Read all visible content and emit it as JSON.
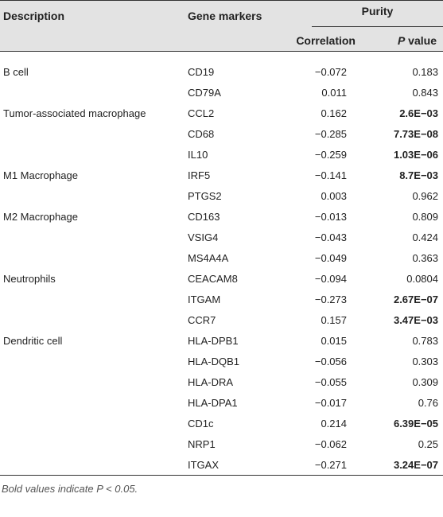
{
  "header": {
    "description": "Description",
    "gene_markers": "Gene markers",
    "purity": "Purity",
    "correlation": "Correlation",
    "p_letter": "P",
    "p_value_suffix": " value"
  },
  "rows": [
    {
      "description": "B cell",
      "gene": "CD19",
      "correlation": "−0.072",
      "p_value": "0.183",
      "bold": false
    },
    {
      "description": "",
      "gene": "CD79A",
      "correlation": "0.011",
      "p_value": "0.843",
      "bold": false
    },
    {
      "description": "Tumor-associated macrophage",
      "gene": "CCL2",
      "correlation": "0.162",
      "p_value": "2.6E−03",
      "bold": true
    },
    {
      "description": "",
      "gene": "CD68",
      "correlation": "−0.285",
      "p_value": "7.73E−08",
      "bold": true
    },
    {
      "description": "",
      "gene": "IL10",
      "correlation": "−0.259",
      "p_value": "1.03E−06",
      "bold": true
    },
    {
      "description": "M1 Macrophage",
      "gene": "IRF5",
      "correlation": "−0.141",
      "p_value": "8.7E−03",
      "bold": true
    },
    {
      "description": "",
      "gene": "PTGS2",
      "correlation": "0.003",
      "p_value": "0.962",
      "bold": false
    },
    {
      "description": "M2 Macrophage",
      "gene": "CD163",
      "correlation": "−0.013",
      "p_value": "0.809",
      "bold": false
    },
    {
      "description": "",
      "gene": "VSIG4",
      "correlation": "−0.043",
      "p_value": "0.424",
      "bold": false
    },
    {
      "description": "",
      "gene": "MS4A4A",
      "correlation": "−0.049",
      "p_value": "0.363",
      "bold": false
    },
    {
      "description": "Neutrophils",
      "gene": "CEACAM8",
      "correlation": "−0.094",
      "p_value": "0.0804",
      "bold": false
    },
    {
      "description": "",
      "gene": "ITGAM",
      "correlation": "−0.273",
      "p_value": "2.67E−07",
      "bold": true
    },
    {
      "description": "",
      "gene": "CCR7",
      "correlation": "0.157",
      "p_value": "3.47E−03",
      "bold": true
    },
    {
      "description": "Dendritic cell",
      "gene": "HLA-DPB1",
      "correlation": "0.015",
      "p_value": "0.783",
      "bold": false
    },
    {
      "description": "",
      "gene": "HLA-DQB1",
      "correlation": "−0.056",
      "p_value": "0.303",
      "bold": false
    },
    {
      "description": "",
      "gene": "HLA-DRA",
      "correlation": "−0.055",
      "p_value": "0.309",
      "bold": false
    },
    {
      "description": "",
      "gene": "HLA-DPA1",
      "correlation": "−0.017",
      "p_value": "0.76",
      "bold": false
    },
    {
      "description": "",
      "gene": "CD1c",
      "correlation": "0.214",
      "p_value": "6.39E−05",
      "bold": true
    },
    {
      "description": "",
      "gene": "NRP1",
      "correlation": "−0.062",
      "p_value": "0.25",
      "bold": false
    },
    {
      "description": "",
      "gene": "ITGAX",
      "correlation": "−0.271",
      "p_value": "3.24E−07",
      "bold": true
    }
  ],
  "footnote": "Bold values indicate P < 0.05."
}
